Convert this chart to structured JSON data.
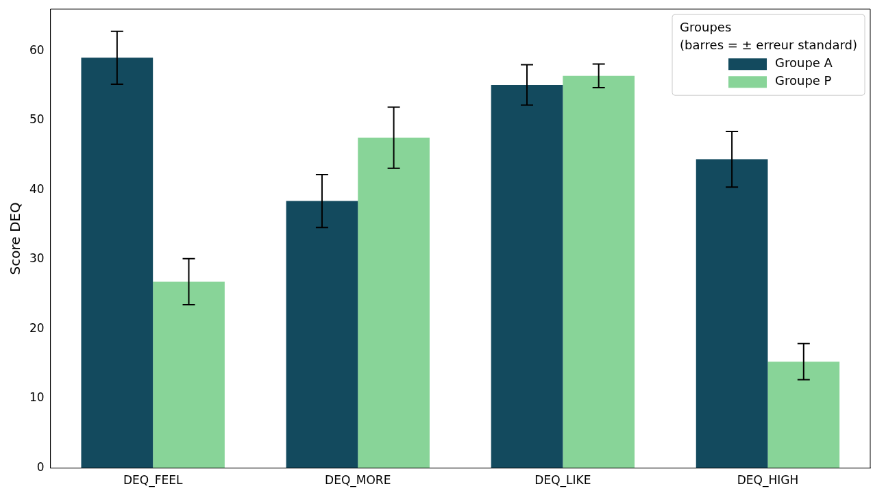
{
  "chart_data": {
    "type": "bar",
    "ylabel": "Score DEQ",
    "legend_title": "Groupes\n(barres = ± erreur standard)",
    "legend": "top right",
    "grid": false,
    "categories": [
      "DEQ_FEEL",
      "DEQ_MORE",
      "DEQ_LIKE",
      "DEQ_HIGH"
    ],
    "ylim": [
      0,
      66
    ],
    "yticks": [
      0,
      10,
      20,
      30,
      40,
      50,
      60
    ],
    "series": [
      {
        "name": "Groupe A",
        "color": "#134a5e",
        "values": [
          59.0,
          38.4,
          55.1,
          44.4
        ],
        "errors": [
          3.8,
          3.8,
          2.9,
          4.0
        ]
      },
      {
        "name": "Groupe P",
        "color": "#88d498",
        "values": [
          26.8,
          47.5,
          56.4,
          15.3
        ],
        "errors": [
          3.3,
          4.4,
          1.7,
          2.6
        ]
      }
    ]
  }
}
